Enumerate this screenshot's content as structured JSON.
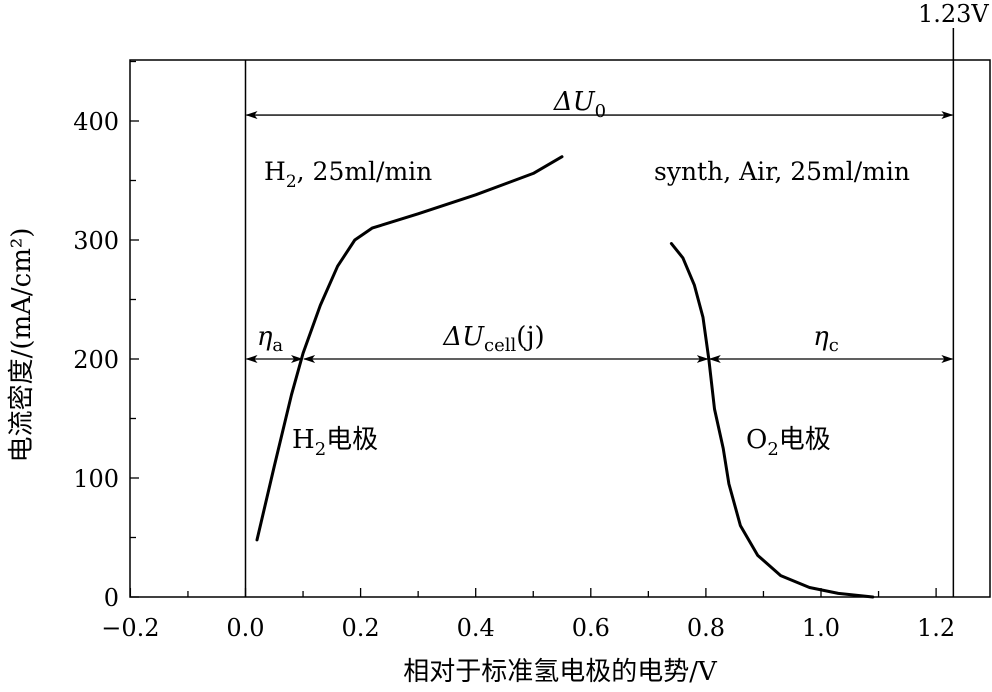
{
  "chart_data": {
    "type": "line",
    "xlabel": "相对于标准氢电极的电势/V",
    "ylabel": "电流密度/(mA/cm²)",
    "xlim": [
      -0.2,
      1.3
    ],
    "ylim": [
      0,
      450
    ],
    "xticks": [
      "−0.2",
      "0.0",
      "0.2",
      "0.4",
      "0.6",
      "0.8",
      "1.0",
      "1.2"
    ],
    "xtick_values": [
      -0.2,
      0.0,
      0.2,
      0.4,
      0.6,
      0.8,
      1.0,
      1.2
    ],
    "yticks": [
      "0",
      "100",
      "200",
      "300",
      "400"
    ],
    "ytick_values": [
      0,
      100,
      200,
      300,
      400
    ],
    "grid": false,
    "series": [
      {
        "name": "H₂电极",
        "points": [
          [
            0.02,
            48
          ],
          [
            0.05,
            110
          ],
          [
            0.08,
            170
          ],
          [
            0.1,
            205
          ],
          [
            0.13,
            245
          ],
          [
            0.16,
            278
          ],
          [
            0.19,
            300
          ],
          [
            0.22,
            310
          ],
          [
            0.3,
            322
          ],
          [
            0.4,
            338
          ],
          [
            0.5,
            356
          ],
          [
            0.55,
            370
          ]
        ]
      },
      {
        "name": "O₂电极",
        "points": [
          [
            0.74,
            297
          ],
          [
            0.76,
            285
          ],
          [
            0.78,
            262
          ],
          [
            0.795,
            235
          ],
          [
            0.805,
            200
          ],
          [
            0.815,
            158
          ],
          [
            0.83,
            125
          ],
          [
            0.84,
            95
          ],
          [
            0.86,
            60
          ],
          [
            0.89,
            35
          ],
          [
            0.93,
            18
          ],
          [
            0.98,
            8
          ],
          [
            1.03,
            3
          ],
          [
            1.09,
            0
          ]
        ]
      }
    ],
    "reference_line": {
      "x": 1.23,
      "label": "1.23V"
    },
    "zero_line": {
      "x": 0.0
    },
    "annotations": {
      "delta_u0": {
        "main": "ΔU",
        "sub": "0",
        "y": 405,
        "x_from": 0.0,
        "x_to": 1.23
      },
      "eta_a": {
        "main": "η",
        "sub": "a",
        "y": 200,
        "x_from": 0.0,
        "x_to": 0.1
      },
      "delta_ucell": {
        "main": "ΔU",
        "sub": "cell",
        "suffix": "(j)",
        "y": 200,
        "x_from": 0.1,
        "x_to": 0.805
      },
      "eta_c": {
        "main": "η",
        "sub": "c",
        "y": 200,
        "x_from": 0.805,
        "x_to": 1.23
      },
      "h2_flow": {
        "pre": "H",
        "sub": "2",
        "post": ", 25ml/min"
      },
      "air_flow": {
        "text": "synth, Air, 25ml/min"
      },
      "h2_electrode": {
        "pre": "H",
        "sub": "2",
        "post": "电极"
      },
      "o2_electrode": {
        "pre": "O",
        "sub": "2",
        "post": "电极"
      }
    }
  }
}
